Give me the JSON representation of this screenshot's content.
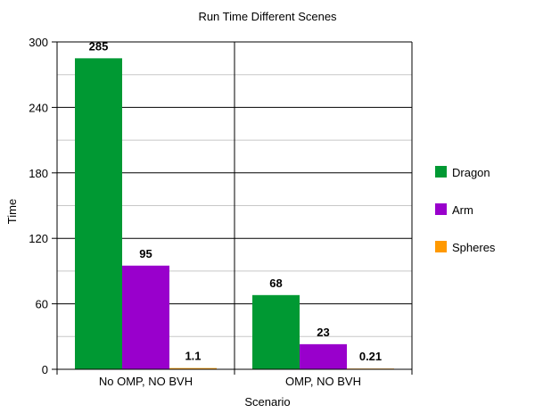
{
  "chart_data": {
    "type": "bar",
    "title": "Run Time Different Scenes",
    "xlabel": "Scenario",
    "ylabel": "Time",
    "ylim": [
      0,
      300
    ],
    "yticks": [
      0,
      60,
      120,
      180,
      240,
      300
    ],
    "categories": [
      "No OMP, NO BVH",
      "OMP, NO BVH"
    ],
    "series": [
      {
        "name": "Dragon",
        "color": "#009933",
        "values": [
          285,
          68
        ],
        "labels": [
          "285",
          "68"
        ]
      },
      {
        "name": "Arm",
        "color": "#9900cc",
        "values": [
          95,
          23
        ],
        "labels": [
          "95",
          "23"
        ]
      },
      {
        "name": "Spheres",
        "color": "#ff9900",
        "values": [
          1.1,
          0.21
        ],
        "labels": [
          "1.1",
          "0.21"
        ]
      }
    ],
    "grid": true,
    "legend_position": "right"
  }
}
